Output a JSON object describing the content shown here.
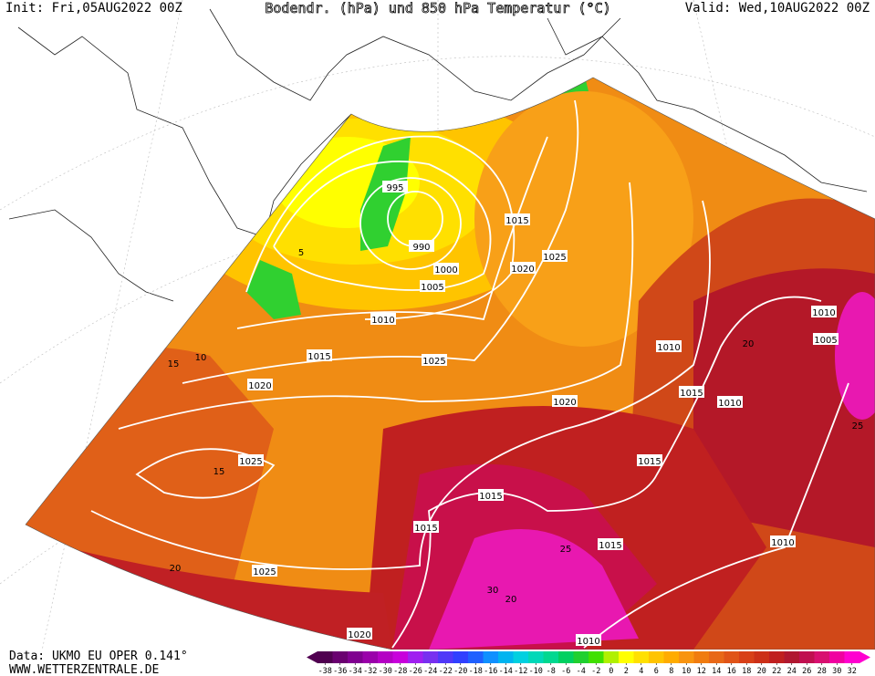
{
  "header": {
    "init": "Init: Fri,05AUG2022 00Z",
    "title": "Bodendr. (hPa) und 850 hPa Temperatur (°C)",
    "valid": "Valid: Wed,10AUG2022 00Z"
  },
  "footer": {
    "source": "Data: UKMO EU OPER 0.141°",
    "website": "WWW.WETTERZENTRALE.DE"
  },
  "colorbar": {
    "ticks": [
      -38,
      -36,
      -34,
      -32,
      -30,
      -28,
      -26,
      -24,
      -22,
      -20,
      -18,
      -16,
      -14,
      -12,
      -10,
      -8,
      -6,
      -4,
      -2,
      0,
      2,
      4,
      6,
      8,
      10,
      12,
      14,
      16,
      18,
      20,
      22,
      24,
      26,
      28,
      30,
      32
    ],
    "colors": [
      "#500050",
      "#6a0070",
      "#800090",
      "#9a00aa",
      "#b400c4",
      "#c800dc",
      "#a020f0",
      "#7830f0",
      "#5038f8",
      "#3040ff",
      "#2060ff",
      "#1090ff",
      "#00b4f0",
      "#00d0e0",
      "#00d8b8",
      "#00d890",
      "#00d060",
      "#20d030",
      "#40e000",
      "#b0f000",
      "#ffff00",
      "#ffe000",
      "#ffc400",
      "#ffac00",
      "#f89410",
      "#f07c10",
      "#e86818",
      "#e05418",
      "#d84018",
      "#cc3018",
      "#c02020",
      "#b01830",
      "#c01050",
      "#d81070",
      "#f000a0",
      "#ff00d0"
    ]
  },
  "isobar_labels": [
    995,
    990,
    1000,
    1005,
    1010,
    1015,
    1025,
    1020,
    1015,
    1020,
    1025,
    1010,
    1015,
    1010,
    1020,
    1015,
    1025,
    1015,
    1015,
    1015,
    1010,
    1025,
    1020,
    1010,
    1010,
    1005
  ],
  "isotherm_labels": [
    5,
    10,
    15,
    15,
    20,
    20,
    25,
    30,
    20,
    25
  ]
}
